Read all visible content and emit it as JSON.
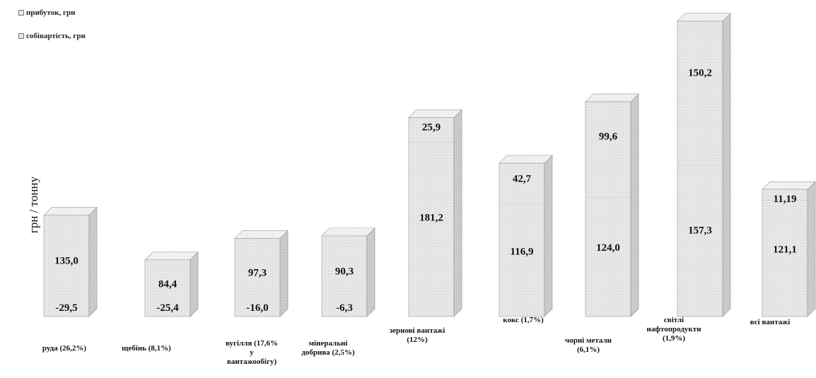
{
  "legend": {
    "profit": "прибуток, грн",
    "cost": "собівартість, грн"
  },
  "ylabel": "грн / тонну",
  "chart_data": {
    "type": "bar",
    "stacked": true,
    "ylabel": "грн / тонну",
    "categories": [
      "руда (26,2%)",
      "щебінь (8,1%)",
      "вугілля (17,6% у вантажообігу)",
      "мінеральні добрива (2,5%)",
      "зернові вантажі (12%)",
      "кокс (1,7%)",
      "чорні метали (6,1%)",
      "світлі нафтопродукти (1,9%)",
      "всі вантажі"
    ],
    "series": [
      {
        "name": "собівартість, грн",
        "values": [
          135.0,
          84.4,
          97.3,
          90.3,
          181.2,
          116.9,
          124.0,
          157.3,
          121.1
        ]
      },
      {
        "name": "прибуток, грн",
        "values": [
          -29.5,
          -25.4,
          -16.0,
          -6.3,
          25.9,
          42.7,
          99.6,
          150.2,
          11.19
        ]
      }
    ],
    "labels": {
      "cost": [
        "135,0",
        "84,4",
        "97,3",
        "90,3",
        "181,2",
        "116,9",
        "124,0",
        "157,3",
        "121,1"
      ],
      "profit": [
        "-29,5",
        "-25,4",
        "-16,0",
        "-6,3",
        "25,9",
        "42,7",
        "99,6",
        "150,2",
        "11,19"
      ]
    },
    "legend_position": "top-left",
    "grid": false
  }
}
